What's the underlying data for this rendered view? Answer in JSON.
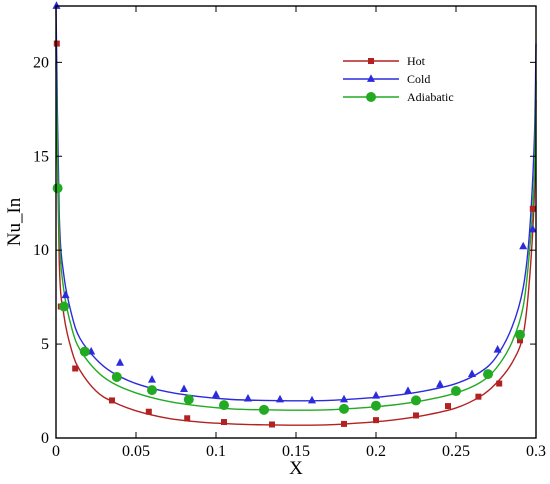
{
  "chart_data": {
    "type": "line",
    "xlabel": "X",
    "ylabel": "Nu_In",
    "xlim": [
      0,
      0.3
    ],
    "ylim": [
      0,
      23
    ],
    "x_ticks": [
      0,
      0.05,
      0.1,
      0.15,
      0.2,
      0.25,
      0.3
    ],
    "x_tick_labels": [
      "0",
      "0.05",
      "0.1",
      "0.15",
      "0.2",
      "0.25",
      "0.3"
    ],
    "y_ticks": [
      0,
      5,
      10,
      15,
      20
    ],
    "y_tick_labels": [
      "0",
      "5",
      "10",
      "15",
      "20"
    ],
    "grid": false,
    "legend_position": "top-right",
    "series": [
      {
        "name": "Hot",
        "color": "#b22222",
        "marker": "square",
        "x": [
          0,
          0.002,
          0.005,
          0.01,
          0.015,
          0.025,
          0.035,
          0.05,
          0.07,
          0.09,
          0.11,
          0.13,
          0.15,
          0.17,
          0.19,
          0.21,
          0.23,
          0.25,
          0.265,
          0.275,
          0.285,
          0.292,
          0.296,
          0.299,
          0.3
        ],
        "y": [
          21,
          9.5,
          6.5,
          4.6,
          3.6,
          2.5,
          1.95,
          1.45,
          1.05,
          0.85,
          0.75,
          0.7,
          0.68,
          0.7,
          0.8,
          0.95,
          1.2,
          1.6,
          2.2,
          2.9,
          4.0,
          5.5,
          8.5,
          13,
          18
        ],
        "markers_x": [
          0.0005,
          0.003,
          0.012,
          0.035,
          0.058,
          0.082,
          0.105,
          0.135,
          0.18,
          0.2,
          0.225,
          0.245,
          0.264,
          0.277,
          0.29,
          0.298
        ],
        "markers_y": [
          21,
          7.0,
          3.7,
          2.0,
          1.4,
          1.05,
          0.85,
          0.72,
          0.75,
          0.95,
          1.2,
          1.7,
          2.2,
          2.9,
          5.2,
          12.2
        ]
      },
      {
        "name": "Cold",
        "color": "#2b2bdc",
        "marker": "triangle",
        "x": [
          0,
          0.002,
          0.005,
          0.01,
          0.015,
          0.025,
          0.035,
          0.05,
          0.07,
          0.09,
          0.11,
          0.13,
          0.15,
          0.17,
          0.19,
          0.21,
          0.23,
          0.25,
          0.265,
          0.275,
          0.285,
          0.292,
          0.296,
          0.299,
          0.3
        ],
        "y": [
          23,
          12,
          8.6,
          6.5,
          5.3,
          4.2,
          3.5,
          2.9,
          2.45,
          2.2,
          2.05,
          2.0,
          1.98,
          2.0,
          2.1,
          2.25,
          2.5,
          2.9,
          3.5,
          4.3,
          5.9,
          8.0,
          11.0,
          16,
          21
        ],
        "markers_x": [
          0.0003,
          0.006,
          0.022,
          0.04,
          0.06,
          0.08,
          0.1,
          0.12,
          0.14,
          0.16,
          0.18,
          0.2,
          0.22,
          0.24,
          0.26,
          0.276,
          0.292,
          0.298
        ],
        "markers_y": [
          23,
          7.6,
          4.6,
          4.0,
          3.1,
          2.6,
          2.3,
          2.1,
          2.05,
          2.0,
          2.05,
          2.25,
          2.5,
          2.85,
          3.4,
          4.7,
          10.2,
          11.1
        ]
      },
      {
        "name": "Adiabatic",
        "color": "#22aa22",
        "marker": "circle",
        "x": [
          0,
          0.002,
          0.005,
          0.01,
          0.015,
          0.025,
          0.035,
          0.05,
          0.07,
          0.09,
          0.11,
          0.13,
          0.15,
          0.17,
          0.19,
          0.21,
          0.23,
          0.25,
          0.265,
          0.275,
          0.285,
          0.292,
          0.296,
          0.299,
          0.3
        ],
        "y": [
          20,
          11,
          7.8,
          5.8,
          4.7,
          3.6,
          2.95,
          2.4,
          1.95,
          1.7,
          1.55,
          1.5,
          1.48,
          1.5,
          1.6,
          1.75,
          2.0,
          2.4,
          2.95,
          3.7,
          5.1,
          7.0,
          10,
          14,
          19
        ],
        "markers_x": [
          0.001,
          0.005,
          0.018,
          0.038,
          0.06,
          0.083,
          0.105,
          0.13,
          0.18,
          0.2,
          0.225,
          0.25,
          0.27,
          0.29
        ],
        "markers_y": [
          13.3,
          7.0,
          4.6,
          3.25,
          2.55,
          2.05,
          1.75,
          1.5,
          1.55,
          1.72,
          2.0,
          2.5,
          3.4,
          5.5
        ]
      }
    ]
  }
}
